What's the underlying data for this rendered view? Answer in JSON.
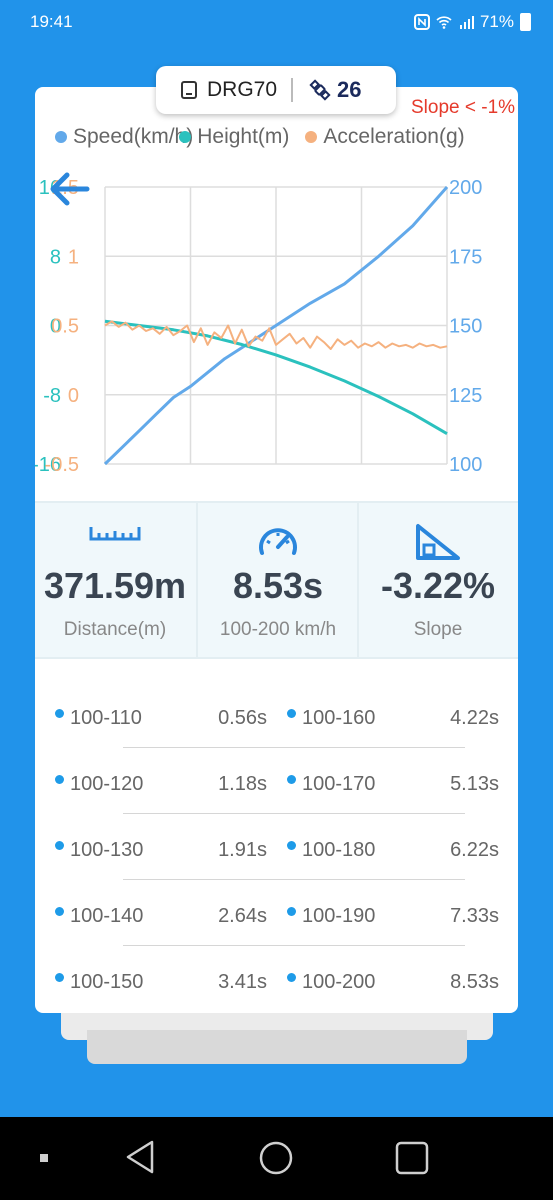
{
  "status": {
    "time": "19:41",
    "battery": "71%"
  },
  "device": {
    "name": "DRG70",
    "satellites": "26"
  },
  "chart": {
    "slope_filter": "Slope < -1%",
    "legend": [
      {
        "label": "Speed(km/h)",
        "color": "#62a9ea"
      },
      {
        "label": "Height(m)",
        "color": "#2bc1be"
      },
      {
        "label": "Acceleration(g)",
        "color": "#f5b17f"
      }
    ]
  },
  "chart_data": {
    "type": "line",
    "x_gridlines": 4,
    "axes": {
      "height_left": {
        "ticks": [
          "16",
          "8",
          "0",
          "-8",
          "-16"
        ],
        "range": [
          -16,
          16
        ],
        "color": "#2bc1be"
      },
      "acceleration_left": {
        "ticks": [
          "1.5",
          "1",
          "0.5",
          "0",
          "-0.5"
        ],
        "range": [
          -0.5,
          1.5
        ],
        "color": "#f5b17f"
      },
      "speed_right": {
        "ticks": [
          "200",
          "175",
          "150",
          "125",
          "100"
        ],
        "range": [
          100,
          200
        ],
        "color": "#62a9ea"
      }
    },
    "series": [
      {
        "name": "Speed(km/h)",
        "axis": "speed_right",
        "x": [
          0,
          0.05,
          0.1,
          0.15,
          0.2,
          0.25,
          0.3,
          0.35,
          0.4,
          0.5,
          0.6,
          0.7,
          0.8,
          0.9,
          1.0
        ],
        "values": [
          100,
          106,
          112,
          118,
          124,
          128,
          133,
          138,
          142,
          150,
          158,
          165,
          175,
          186,
          200
        ]
      },
      {
        "name": "Height(m)",
        "axis": "height_left",
        "x": [
          0,
          0.1,
          0.2,
          0.3,
          0.4,
          0.5,
          0.6,
          0.7,
          0.8,
          0.9,
          1.0
        ],
        "values": [
          0.5,
          0.0,
          -0.5,
          -1.2,
          -2.2,
          -3.4,
          -4.8,
          -6.4,
          -8.2,
          -10.2,
          -12.5
        ]
      },
      {
        "name": "Acceleration(g)",
        "axis": "acceleration_left",
        "x": [
          0,
          0.02,
          0.04,
          0.06,
          0.08,
          0.1,
          0.12,
          0.14,
          0.16,
          0.18,
          0.2,
          0.22,
          0.24,
          0.26,
          0.28,
          0.3,
          0.32,
          0.34,
          0.36,
          0.38,
          0.4,
          0.42,
          0.44,
          0.46,
          0.48,
          0.5,
          0.52,
          0.54,
          0.56,
          0.58,
          0.6,
          0.62,
          0.64,
          0.66,
          0.68,
          0.7,
          0.72,
          0.74,
          0.76,
          0.78,
          0.8,
          0.82,
          0.84,
          0.86,
          0.88,
          0.9,
          0.92,
          0.94,
          0.96,
          0.98,
          1.0
        ],
        "values": [
          0.5,
          0.53,
          0.49,
          0.52,
          0.47,
          0.5,
          0.46,
          0.48,
          0.44,
          0.49,
          0.43,
          0.46,
          0.5,
          0.38,
          0.48,
          0.36,
          0.45,
          0.41,
          0.5,
          0.37,
          0.47,
          0.35,
          0.42,
          0.39,
          0.48,
          0.36,
          0.4,
          0.44,
          0.37,
          0.41,
          0.34,
          0.42,
          0.38,
          0.33,
          0.4,
          0.36,
          0.39,
          0.34,
          0.37,
          0.35,
          0.38,
          0.34,
          0.37,
          0.35,
          0.36,
          0.34,
          0.37,
          0.35,
          0.36,
          0.34,
          0.35
        ]
      }
    ]
  },
  "metrics": [
    {
      "value": "371.59m",
      "label": "Distance(m)",
      "icon": "ruler-icon"
    },
    {
      "value": "8.53s",
      "label": "100-200 km/h",
      "icon": "speedometer-icon"
    },
    {
      "value": "-3.22%",
      "label": "Slope",
      "icon": "slope-icon"
    }
  ],
  "times": {
    "left": [
      {
        "range": "100-110",
        "time": "0.56s"
      },
      {
        "range": "100-120",
        "time": "1.18s"
      },
      {
        "range": "100-130",
        "time": "1.91s"
      },
      {
        "range": "100-140",
        "time": "2.64s"
      },
      {
        "range": "100-150",
        "time": "3.41s"
      }
    ],
    "right": [
      {
        "range": "100-160",
        "time": "4.22s"
      },
      {
        "range": "100-170",
        "time": "5.13s"
      },
      {
        "range": "100-180",
        "time": "6.22s"
      },
      {
        "range": "100-190",
        "time": "7.33s"
      },
      {
        "range": "100-200",
        "time": "8.53s"
      }
    ]
  }
}
